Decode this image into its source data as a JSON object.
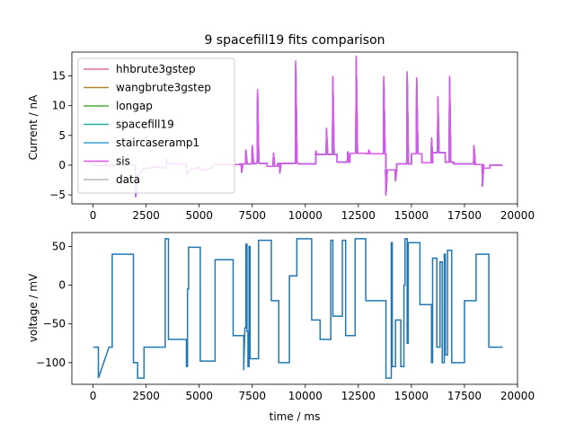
{
  "chart_data": [
    {
      "type": "line",
      "title": "9 spacefill19 fits comparison",
      "xlabel": "",
      "ylabel": "Current / nA",
      "xlim": [
        -1000,
        20000
      ],
      "ylim": [
        -6.5,
        19
      ],
      "xticks": [
        0,
        2500,
        5000,
        7500,
        10000,
        12500,
        15000,
        17500,
        20000
      ],
      "yticks": [
        -5,
        0,
        5,
        10,
        15
      ],
      "legend_position": "upper-left",
      "series": [
        {
          "name": "hhbrute3gstep",
          "color": "#e07090"
        },
        {
          "name": "wangbrute3gstep",
          "color": "#b08a30"
        },
        {
          "name": "longap",
          "color": "#4aad3a"
        },
        {
          "name": "spacefill19",
          "color": "#2aaea0"
        },
        {
          "name": "staircaseramp1",
          "color": "#3a9fd0"
        },
        {
          "name": "sis",
          "color": "#e055f0"
        },
        {
          "name": "data",
          "color": "#b8b8b8"
        }
      ],
      "data_shape": {
        "baseline_segments": [
          [
            0,
            0
          ],
          [
            2000,
            0
          ],
          [
            2010,
            -5.3
          ],
          [
            2100,
            -1.8
          ],
          [
            2400,
            -0.6
          ],
          [
            3000,
            -0.3
          ],
          [
            3450,
            -0.5
          ],
          [
            3460,
            1.0
          ],
          [
            3500,
            0.3
          ],
          [
            4400,
            0.1
          ],
          [
            4410,
            -1.6
          ],
          [
            4600,
            -0.7
          ],
          [
            5000,
            -0.4
          ],
          [
            5100,
            -0.9
          ],
          [
            5600,
            -0.5
          ],
          [
            5700,
            0.1
          ],
          [
            6900,
            0.1
          ]
        ],
        "spikes": [
          {
            "x": 7750,
            "y": 12.2
          },
          {
            "x": 9550,
            "y": 17.0
          },
          {
            "x": 11000,
            "y": 5.7
          },
          {
            "x": 11300,
            "y": 14.4
          },
          {
            "x": 12400,
            "y": 17.8
          },
          {
            "x": 13700,
            "y": 14.4
          },
          {
            "x": 14800,
            "y": 15.2
          },
          {
            "x": 15250,
            "y": 14.2
          },
          {
            "x": 15950,
            "y": 4.5
          },
          {
            "x": 16250,
            "y": 11.0
          },
          {
            "x": 16800,
            "y": 14.4
          },
          {
            "x": 17950,
            "y": 3.2
          },
          {
            "x": 7200,
            "y": 2.5
          },
          {
            "x": 7500,
            "y": 3.2
          },
          {
            "x": 8500,
            "y": 2.0
          },
          {
            "x": 10500,
            "y": 2.3
          },
          {
            "x": 12000,
            "y": 2.2
          },
          {
            "x": 13000,
            "y": 2.5
          }
        ],
        "dips": [
          {
            "x": 7000,
            "y": -1.2
          },
          {
            "x": 8800,
            "y": -1.3
          },
          {
            "x": 13800,
            "y": -5.0
          },
          {
            "x": 14250,
            "y": -2.6
          },
          {
            "x": 18350,
            "y": -3.5
          }
        ]
      }
    },
    {
      "type": "line",
      "title": "",
      "xlabel": "time / ms",
      "ylabel": "voltage / mV",
      "xlim": [
        -1000,
        20000
      ],
      "ylim": [
        -128,
        68
      ],
      "xticks": [
        0,
        2500,
        5000,
        7500,
        10000,
        12500,
        15000,
        17500,
        20000
      ],
      "yticks": [
        -100,
        -50,
        0,
        50
      ],
      "series": [
        {
          "name": "",
          "color": "#1f77b4",
          "points": [
            [
              0,
              -80
            ],
            [
              250,
              -80
            ],
            [
              250,
              -120
            ],
            [
              750,
              -80
            ],
            [
              900,
              -80
            ],
            [
              900,
              40
            ],
            [
              1900,
              40
            ],
            [
              1900,
              -100
            ],
            [
              2100,
              -100
            ],
            [
              2100,
              -120
            ],
            [
              2400,
              -120
            ],
            [
              2400,
              -80
            ],
            [
              3400,
              -80
            ],
            [
              3400,
              60
            ],
            [
              3550,
              60
            ],
            [
              3550,
              -70
            ],
            [
              4400,
              -70
            ],
            [
              4400,
              -105
            ],
            [
              4450,
              -105
            ],
            [
              4450,
              -5
            ],
            [
              4500,
              -5
            ],
            [
              4500,
              49
            ],
            [
              5050,
              49
            ],
            [
              5050,
              -98
            ],
            [
              5750,
              -98
            ],
            [
              5750,
              33
            ],
            [
              6600,
              33
            ],
            [
              6600,
              -65
            ],
            [
              7100,
              -65
            ],
            [
              7100,
              -110
            ],
            [
              7150,
              -55
            ],
            [
              7200,
              -55
            ],
            [
              7200,
              53
            ],
            [
              7250,
              53
            ],
            [
              7250,
              -60
            ],
            [
              7300,
              -60
            ],
            [
              7300,
              -105
            ],
            [
              7350,
              -105
            ],
            [
              7350,
              50
            ],
            [
              7400,
              50
            ],
            [
              7400,
              -95
            ],
            [
              7800,
              -95
            ],
            [
              7800,
              58
            ],
            [
              8400,
              58
            ],
            [
              8400,
              -20
            ],
            [
              8750,
              -20
            ],
            [
              8750,
              -100
            ],
            [
              9250,
              -100
            ],
            [
              9250,
              12
            ],
            [
              9600,
              12
            ],
            [
              9600,
              60
            ],
            [
              10300,
              60
            ],
            [
              10300,
              -45
            ],
            [
              10700,
              -45
            ],
            [
              10700,
              -70
            ],
            [
              11200,
              -70
            ],
            [
              11200,
              58
            ],
            [
              11300,
              58
            ],
            [
              11300,
              -40
            ],
            [
              11750,
              -40
            ],
            [
              11750,
              58
            ],
            [
              11900,
              58
            ],
            [
              11900,
              -65
            ],
            [
              12350,
              -65
            ],
            [
              12350,
              60
            ],
            [
              12850,
              60
            ],
            [
              12850,
              -20
            ],
            [
              13800,
              -20
            ],
            [
              13800,
              -120
            ],
            [
              14050,
              -120
            ],
            [
              14050,
              55
            ],
            [
              14100,
              55
            ],
            [
              14100,
              -105
            ],
            [
              14250,
              -105
            ],
            [
              14250,
              -45
            ],
            [
              14500,
              -45
            ],
            [
              14500,
              -105
            ],
            [
              14650,
              -105
            ],
            [
              14650,
              0
            ],
            [
              14700,
              0
            ],
            [
              14700,
              60
            ],
            [
              14800,
              60
            ],
            [
              14800,
              -75
            ],
            [
              14850,
              -75
            ],
            [
              14850,
              55
            ],
            [
              15400,
              55
            ],
            [
              15400,
              -25
            ],
            [
              15950,
              -25
            ],
            [
              15950,
              -100
            ],
            [
              16000,
              -100
            ],
            [
              16000,
              35
            ],
            [
              16200,
              35
            ],
            [
              16200,
              -80
            ],
            [
              16350,
              -80
            ],
            [
              16350,
              30
            ],
            [
              16450,
              30
            ],
            [
              16450,
              -100
            ],
            [
              16550,
              -100
            ],
            [
              16550,
              40
            ],
            [
              16600,
              40
            ],
            [
              16600,
              -90
            ],
            [
              16700,
              -90
            ],
            [
              16700,
              45
            ],
            [
              16900,
              45
            ],
            [
              16900,
              -100
            ],
            [
              17500,
              -100
            ],
            [
              17500,
              -20
            ],
            [
              18050,
              -20
            ],
            [
              18050,
              40
            ],
            [
              18650,
              40
            ],
            [
              18650,
              -80
            ],
            [
              19300,
              -80
            ]
          ]
        }
      ]
    }
  ]
}
